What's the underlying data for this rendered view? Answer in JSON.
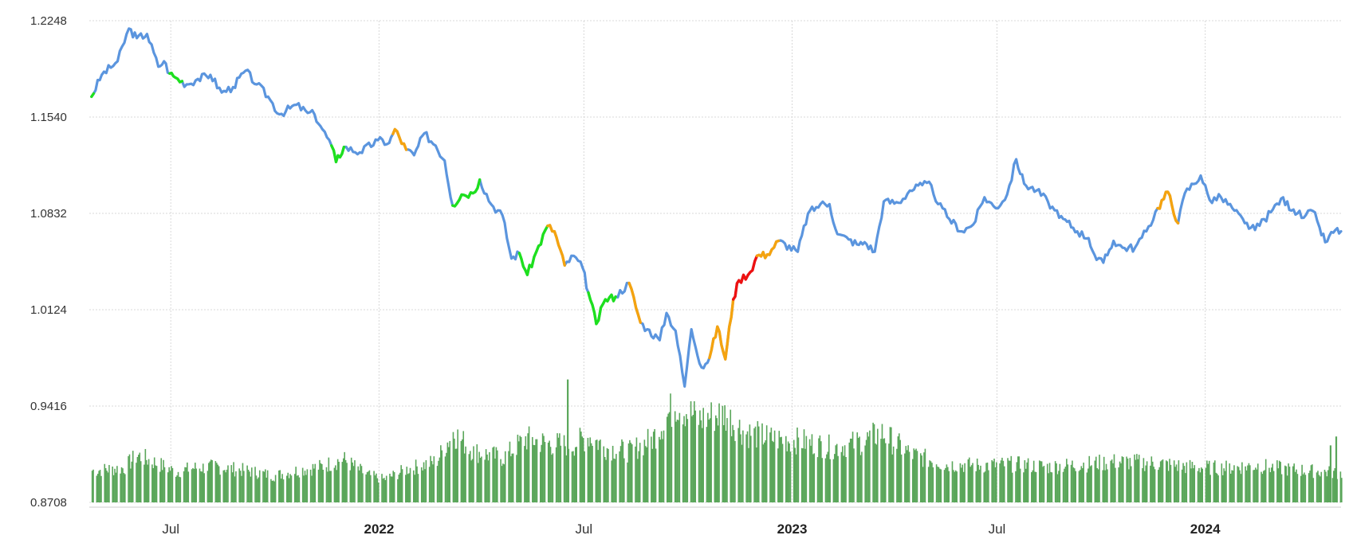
{
  "chart_data": {
    "type": "line",
    "y_axis": {
      "ticks": [
        0.8708,
        0.9416,
        1.0124,
        1.0832,
        1.154,
        1.2248
      ],
      "tick_labels": [
        "0.8708",
        "0.9416",
        "1.0124",
        "1.0832",
        "1.1540",
        "1.2248"
      ],
      "range": [
        0.8708,
        1.2248
      ]
    },
    "x_axis": {
      "range": [
        "2021-04-20",
        "2024-04-30"
      ],
      "ticks": [
        {
          "label": "Jul",
          "date": "2021-07-01",
          "bold": false
        },
        {
          "label": "2022",
          "date": "2022-01-01",
          "bold": true
        },
        {
          "label": "Jul",
          "date": "2022-07-01",
          "bold": false
        },
        {
          "label": "2023",
          "date": "2023-01-01",
          "bold": true
        },
        {
          "label": "Jul",
          "date": "2023-07-01",
          "bold": false
        },
        {
          "label": "2024",
          "date": "2024-01-01",
          "bold": true
        }
      ]
    },
    "grid": true,
    "colors": {
      "price": "#5b95de",
      "green": "#1ee01e",
      "orange": "#f5a30f",
      "red": "#ee1111",
      "volume": "#5aa65a",
      "grid": "#d8d8d8"
    },
    "price_series": [
      [
        "2021-04-22",
        1.169
      ],
      [
        "2021-05-01",
        1.185
      ],
      [
        "2021-05-15",
        1.195
      ],
      [
        "2021-05-25",
        1.219
      ],
      [
        "2021-06-01",
        1.212
      ],
      [
        "2021-06-10",
        1.215
      ],
      [
        "2021-06-20",
        1.191
      ],
      [
        "2021-06-25",
        1.195
      ],
      [
        "2021-06-30",
        1.186
      ],
      [
        "2021-07-05",
        1.183
      ],
      [
        "2021-07-15",
        1.178
      ],
      [
        "2021-07-25",
        1.182
      ],
      [
        "2021-08-05",
        1.185
      ],
      [
        "2021-08-15",
        1.172
      ],
      [
        "2021-08-25",
        1.176
      ],
      [
        "2021-09-05",
        1.188
      ],
      [
        "2021-09-15",
        1.178
      ],
      [
        "2021-09-25",
        1.169
      ],
      [
        "2021-10-05",
        1.156
      ],
      [
        "2021-10-20",
        1.163
      ],
      [
        "2021-10-30",
        1.157
      ],
      [
        "2021-11-05",
        1.156
      ],
      [
        "2021-11-12",
        1.145
      ],
      [
        "2021-11-20",
        1.133
      ],
      [
        "2021-11-24",
        1.121
      ],
      [
        "2021-12-01",
        1.132
      ],
      [
        "2021-12-15",
        1.128
      ],
      [
        "2021-12-31",
        1.137
      ],
      [
        "2022-01-10",
        1.135
      ],
      [
        "2022-01-15",
        1.145
      ],
      [
        "2022-01-25",
        1.13
      ],
      [
        "2022-02-01",
        1.126
      ],
      [
        "2022-02-10",
        1.142
      ],
      [
        "2022-02-20",
        1.133
      ],
      [
        "2022-02-28",
        1.122
      ],
      [
        "2022-03-07",
        1.089
      ],
      [
        "2022-03-15",
        1.097
      ],
      [
        "2022-03-25",
        1.098
      ],
      [
        "2022-03-31",
        1.108
      ],
      [
        "2022-04-10",
        1.09
      ],
      [
        "2022-04-20",
        1.082
      ],
      [
        "2022-04-28",
        1.05
      ],
      [
        "2022-05-05",
        1.054
      ],
      [
        "2022-05-12",
        1.038
      ],
      [
        "2022-05-20",
        1.055
      ],
      [
        "2022-05-30",
        1.074
      ],
      [
        "2022-06-05",
        1.07
      ],
      [
        "2022-06-14",
        1.045
      ],
      [
        "2022-06-22",
        1.052
      ],
      [
        "2022-06-30",
        1.043
      ],
      [
        "2022-07-05",
        1.025
      ],
      [
        "2022-07-12",
        1.002
      ],
      [
        "2022-07-20",
        1.02
      ],
      [
        "2022-07-29",
        1.022
      ],
      [
        "2022-08-10",
        1.032
      ],
      [
        "2022-08-20",
        1.003
      ],
      [
        "2022-08-26",
        0.998
      ],
      [
        "2022-09-06",
        0.99
      ],
      [
        "2022-09-12",
        1.01
      ],
      [
        "2022-09-20",
        0.997
      ],
      [
        "2022-09-28",
        0.956
      ],
      [
        "2022-10-04",
        0.998
      ],
      [
        "2022-10-13",
        0.97
      ],
      [
        "2022-10-20",
        0.977
      ],
      [
        "2022-10-27",
        1.0
      ],
      [
        "2022-11-03",
        0.976
      ],
      [
        "2022-11-10",
        1.02
      ],
      [
        "2022-11-15",
        1.034
      ],
      [
        "2022-11-25",
        1.04
      ],
      [
        "2022-12-01",
        1.052
      ],
      [
        "2022-12-10",
        1.053
      ],
      [
        "2022-12-20",
        1.063
      ],
      [
        "2023-01-06",
        1.055
      ],
      [
        "2023-01-15",
        1.083
      ],
      [
        "2023-01-26",
        1.09
      ],
      [
        "2023-02-03",
        1.09
      ],
      [
        "2023-02-10",
        1.068
      ],
      [
        "2023-02-20",
        1.064
      ],
      [
        "2023-03-01",
        1.06
      ],
      [
        "2023-03-06",
        1.062
      ],
      [
        "2023-03-15",
        1.055
      ],
      [
        "2023-03-23",
        1.092
      ],
      [
        "2023-04-05",
        1.091
      ],
      [
        "2023-04-15",
        1.1
      ],
      [
        "2023-04-26",
        1.104
      ],
      [
        "2023-05-04",
        1.104
      ],
      [
        "2023-05-10",
        1.09
      ],
      [
        "2023-05-20",
        1.079
      ],
      [
        "2023-05-31",
        1.07
      ],
      [
        "2023-06-10",
        1.075
      ],
      [
        "2023-06-20",
        1.095
      ],
      [
        "2023-06-30",
        1.087
      ],
      [
        "2023-07-10",
        1.097
      ],
      [
        "2023-07-18",
        1.123
      ],
      [
        "2023-07-25",
        1.105
      ],
      [
        "2023-08-05",
        1.1
      ],
      [
        "2023-08-15",
        1.092
      ],
      [
        "2023-08-25",
        1.08
      ],
      [
        "2023-09-01",
        1.077
      ],
      [
        "2023-09-10",
        1.07
      ],
      [
        "2023-09-20",
        1.065
      ],
      [
        "2023-09-27",
        1.049
      ],
      [
        "2023-10-03",
        1.047
      ],
      [
        "2023-10-12",
        1.063
      ],
      [
        "2023-10-20",
        1.058
      ],
      [
        "2023-10-31",
        1.058
      ],
      [
        "2023-11-10",
        1.07
      ],
      [
        "2023-11-20",
        1.087
      ],
      [
        "2023-11-29",
        1.099
      ],
      [
        "2023-12-08",
        1.076
      ],
      [
        "2023-12-14",
        1.098
      ],
      [
        "2023-12-28",
        1.111
      ],
      [
        "2024-01-05",
        1.093
      ],
      [
        "2024-01-15",
        1.095
      ],
      [
        "2024-01-25",
        1.087
      ],
      [
        "2024-02-05",
        1.076
      ],
      [
        "2024-02-14",
        1.071
      ],
      [
        "2024-02-28",
        1.084
      ],
      [
        "2024-03-08",
        1.094
      ],
      [
        "2024-03-19",
        1.086
      ],
      [
        "2024-03-28",
        1.08
      ],
      [
        "2024-04-05",
        1.085
      ],
      [
        "2024-04-11",
        1.073
      ],
      [
        "2024-04-16",
        1.062
      ],
      [
        "2024-04-25",
        1.071
      ],
      [
        "2024-04-30",
        1.07
      ]
    ],
    "colored_segments": [
      {
        "color": "green",
        "from": "2021-04-22",
        "to": "2021-04-25"
      },
      {
        "color": "green",
        "from": "2021-06-30",
        "to": "2021-07-12"
      },
      {
        "color": "green",
        "from": "2021-11-20",
        "to": "2021-12-01"
      },
      {
        "color": "orange",
        "from": "2022-01-12",
        "to": "2022-01-25"
      },
      {
        "color": "green",
        "from": "2022-03-07",
        "to": "2022-04-01"
      },
      {
        "color": "green",
        "from": "2022-05-05",
        "to": "2022-05-30"
      },
      {
        "color": "orange",
        "from": "2022-05-30",
        "to": "2022-06-14"
      },
      {
        "color": "green",
        "from": "2022-07-05",
        "to": "2022-07-29"
      },
      {
        "color": "orange",
        "from": "2022-08-10",
        "to": "2022-08-20"
      },
      {
        "color": "orange",
        "from": "2022-10-20",
        "to": "2022-11-10"
      },
      {
        "color": "red",
        "from": "2022-11-10",
        "to": "2022-12-01"
      },
      {
        "color": "orange",
        "from": "2022-12-01",
        "to": "2022-12-20"
      },
      {
        "color": "orange",
        "from": "2023-11-20",
        "to": "2023-12-08"
      }
    ],
    "volume_scale": [
      0,
      0.12
    ],
    "volume_series": [
      [
        "2021-04-22",
        0.025
      ],
      [
        "2021-05-20",
        0.027
      ],
      [
        "2021-06-01",
        0.037
      ],
      [
        "2021-06-20",
        0.03
      ],
      [
        "2021-07-05",
        0.024
      ],
      [
        "2021-07-20",
        0.027
      ],
      [
        "2021-08-10",
        0.028
      ],
      [
        "2021-09-05",
        0.025
      ],
      [
        "2021-09-30",
        0.021
      ],
      [
        "2021-10-20",
        0.025
      ],
      [
        "2021-11-10",
        0.028
      ],
      [
        "2021-11-30",
        0.034
      ],
      [
        "2021-12-20",
        0.022
      ],
      [
        "2022-01-05",
        0.018
      ],
      [
        "2022-01-25",
        0.026
      ],
      [
        "2022-02-20",
        0.032
      ],
      [
        "2022-03-07",
        0.055
      ],
      [
        "2022-03-25",
        0.04
      ],
      [
        "2022-04-20",
        0.035
      ],
      [
        "2022-05-10",
        0.05
      ],
      [
        "2022-06-01",
        0.046
      ],
      [
        "2022-06-20",
        0.045
      ],
      [
        "2022-07-05",
        0.052
      ],
      [
        "2022-07-20",
        0.043
      ],
      [
        "2022-08-10",
        0.04
      ],
      [
        "2022-08-30",
        0.05
      ],
      [
        "2022-09-20",
        0.078
      ],
      [
        "2022-10-10",
        0.065
      ],
      [
        "2022-11-01",
        0.07
      ],
      [
        "2022-11-20",
        0.055
      ],
      [
        "2022-12-15",
        0.05
      ],
      [
        "2023-01-10",
        0.048
      ],
      [
        "2023-02-05",
        0.043
      ],
      [
        "2023-03-05",
        0.048
      ],
      [
        "2023-03-20",
        0.055
      ],
      [
        "2023-04-15",
        0.038
      ],
      [
        "2023-05-15",
        0.03
      ],
      [
        "2023-06-15",
        0.029
      ],
      [
        "2023-07-15",
        0.03
      ],
      [
        "2023-08-15",
        0.028
      ],
      [
        "2023-09-15",
        0.03
      ],
      [
        "2023-10-15",
        0.032
      ],
      [
        "2023-11-15",
        0.031
      ],
      [
        "2023-12-15",
        0.028
      ],
      [
        "2024-01-15",
        0.027
      ],
      [
        "2024-02-15",
        0.029
      ],
      [
        "2024-03-15",
        0.026
      ],
      [
        "2024-04-30",
        0.023
      ]
    ],
    "volume_spikes": [
      [
        "2022-06-16",
        0.097
      ],
      [
        "2024-04-25",
        0.052
      ],
      [
        "2024-04-20",
        0.045
      ]
    ]
  }
}
